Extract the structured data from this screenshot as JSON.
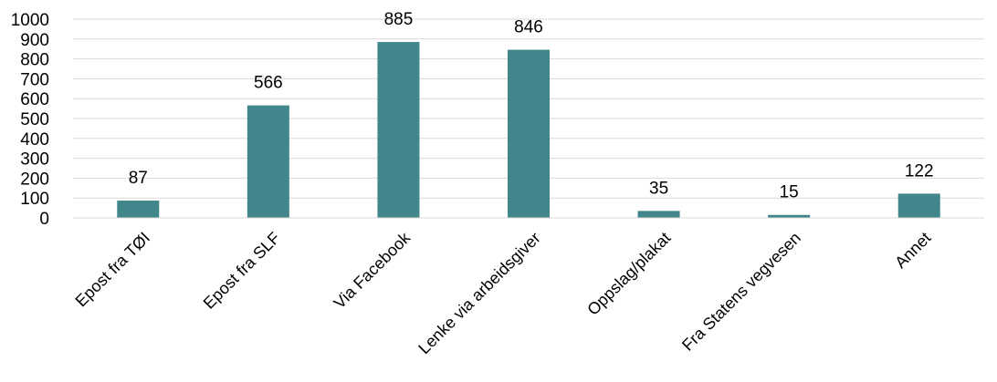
{
  "chart_data": {
    "type": "bar",
    "title": "",
    "xlabel": "",
    "ylabel": "",
    "categories": [
      "Epost fra TØI",
      "Epost fra SLF",
      "Via Facebook",
      "Lenke via arbeidsgiver",
      "Oppslag/plakat",
      "Fra Statens vegvesen",
      "Annet"
    ],
    "values": [
      87,
      566,
      885,
      846,
      35,
      15,
      122
    ],
    "ylim": [
      0,
      1000
    ],
    "yticks": [
      0,
      100,
      200,
      300,
      400,
      500,
      600,
      700,
      800,
      900,
      1000
    ],
    "grid": true,
    "legend": "none",
    "bar_color": "#41868A",
    "grid_color": "#D9D9D9"
  }
}
